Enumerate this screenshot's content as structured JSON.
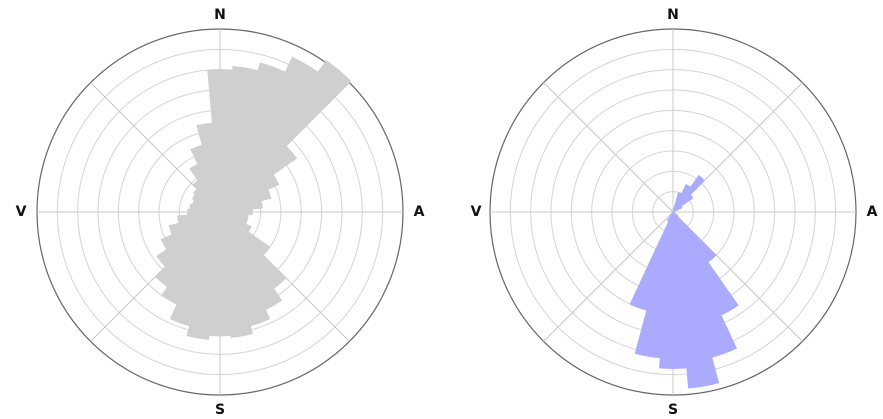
{
  "colors": {
    "rose_left": "#cfcfcf",
    "rose_right": "#aaaaff",
    "grid": "#d4d4d4",
    "axis_line": "#c8c8c8",
    "outer_ring": "#666666",
    "label": "#111111"
  },
  "chart_data": [
    {
      "type": "polar-bar",
      "title": "",
      "direction_labels": {
        "north": "N",
        "east": "A",
        "south": "S",
        "west": "V"
      },
      "rings": 9,
      "bin_width_deg": 10,
      "color": "#cfcfcf",
      "bins": [
        {
          "dir": 0,
          "r": 7
        },
        {
          "dir": 10,
          "r": 7.2
        },
        {
          "dir": 20,
          "r": 7.6
        },
        {
          "dir": 30,
          "r": 8.4
        },
        {
          "dir": 40,
          "r": 9.1
        },
        {
          "dir": 50,
          "r": 4.6
        },
        {
          "dir": 60,
          "r": 3.2
        },
        {
          "dir": 70,
          "r": 2.6
        },
        {
          "dir": 80,
          "r": 2.1
        },
        {
          "dir": 90,
          "r": 1.6
        },
        {
          "dir": 100,
          "r": 1.4
        },
        {
          "dir": 110,
          "r": 1.4
        },
        {
          "dir": 120,
          "r": 1.7
        },
        {
          "dir": 130,
          "r": 3
        },
        {
          "dir": 140,
          "r": 4.6
        },
        {
          "dir": 150,
          "r": 5.3
        },
        {
          "dir": 160,
          "r": 5.8
        },
        {
          "dir": 170,
          "r": 6.2
        },
        {
          "dir": 180,
          "r": 6.1
        },
        {
          "dir": 190,
          "r": 6.3
        },
        {
          "dir": 200,
          "r": 5.8
        },
        {
          "dir": 210,
          "r": 5
        },
        {
          "dir": 220,
          "r": 4.5
        },
        {
          "dir": 230,
          "r": 3.8
        },
        {
          "dir": 240,
          "r": 3.2
        },
        {
          "dir": 250,
          "r": 2.6
        },
        {
          "dir": 260,
          "r": 2.1
        },
        {
          "dir": 270,
          "r": 1.6
        },
        {
          "dir": 280,
          "r": 1.5
        },
        {
          "dir": 290,
          "r": 1.4
        },
        {
          "dir": 300,
          "r": 1.5
        },
        {
          "dir": 310,
          "r": 1.6
        },
        {
          "dir": 320,
          "r": 1.9
        },
        {
          "dir": 330,
          "r": 2.6
        },
        {
          "dir": 340,
          "r": 3.4
        },
        {
          "dir": 350,
          "r": 4.4
        }
      ]
    },
    {
      "type": "polar-bar",
      "title": "",
      "direction_labels": {
        "north": "N",
        "east": "A",
        "south": "S",
        "west": "V"
      },
      "rings": 9,
      "bin_width_deg": 10,
      "color": "#aaaaff",
      "bins": [
        {
          "dir": 0,
          "r": 0
        },
        {
          "dir": 10,
          "r": 0
        },
        {
          "dir": 20,
          "r": 1
        },
        {
          "dir": 30,
          "r": 1.5
        },
        {
          "dir": 40,
          "r": 2.2
        },
        {
          "dir": 50,
          "r": 1.2
        },
        {
          "dir": 60,
          "r": 0.5
        },
        {
          "dir": 70,
          "r": 0
        },
        {
          "dir": 80,
          "r": 0
        },
        {
          "dir": 90,
          "r": 0
        },
        {
          "dir": 100,
          "r": 0
        },
        {
          "dir": 110,
          "r": 0
        },
        {
          "dir": 120,
          "r": 0
        },
        {
          "dir": 130,
          "r": 0.3
        },
        {
          "dir": 140,
          "r": 3
        },
        {
          "dir": 150,
          "r": 5.6
        },
        {
          "dir": 160,
          "r": 7.4
        },
        {
          "dir": 170,
          "r": 8.7
        },
        {
          "dir": 180,
          "r": 7.7
        },
        {
          "dir": 190,
          "r": 7.2
        },
        {
          "dir": 200,
          "r": 5
        },
        {
          "dir": 210,
          "r": 0.5
        },
        {
          "dir": 220,
          "r": 0
        },
        {
          "dir": 230,
          "r": 0
        },
        {
          "dir": 240,
          "r": 0
        },
        {
          "dir": 250,
          "r": 0
        },
        {
          "dir": 260,
          "r": 0
        },
        {
          "dir": 270,
          "r": 0
        },
        {
          "dir": 280,
          "r": 0
        },
        {
          "dir": 290,
          "r": 0
        },
        {
          "dir": 300,
          "r": 0
        },
        {
          "dir": 310,
          "r": 0
        },
        {
          "dir": 320,
          "r": 0
        },
        {
          "dir": 330,
          "r": 0
        },
        {
          "dir": 340,
          "r": 0
        },
        {
          "dir": 350,
          "r": 0
        }
      ]
    }
  ]
}
